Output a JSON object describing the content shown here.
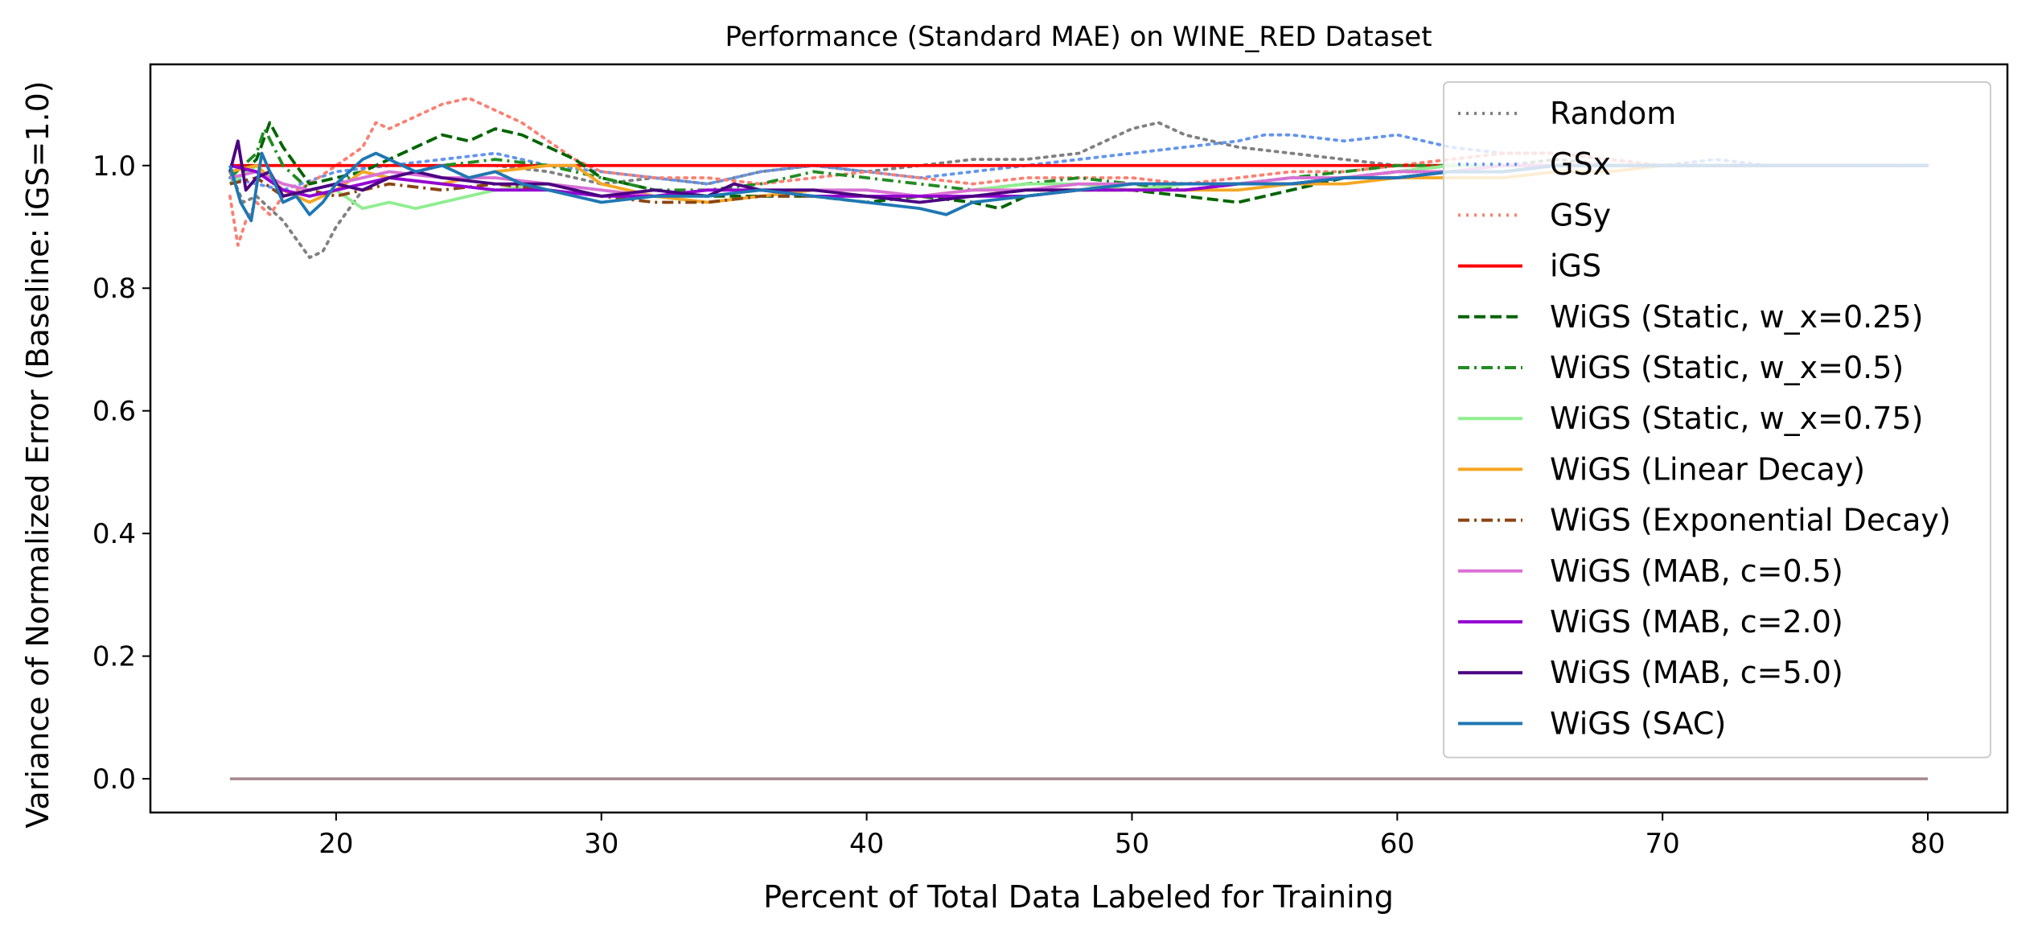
{
  "chart_data": {
    "type": "line",
    "title": "Performance (Standard MAE) on WINE_RED Dataset",
    "xlabel": "Percent of Total Data Labeled for Training",
    "ylabel": "Variance of Normalized Error (Baseline: iGS=1.0)",
    "xlim": [
      13,
      83
    ],
    "ylim": [
      -0.055,
      1.165
    ],
    "xticks": [
      20,
      30,
      40,
      50,
      60,
      70,
      80
    ],
    "yticks": [
      0.0,
      0.2,
      0.4,
      0.6,
      0.8,
      1.0
    ],
    "xtick_labels": [
      "20",
      "30",
      "40",
      "50",
      "60",
      "70",
      "80"
    ],
    "ytick_labels": [
      "0.0",
      "0.2",
      "0.4",
      "0.6",
      "0.8",
      "1.0"
    ],
    "grid": false,
    "legend_position": "upper right",
    "baseline_series": {
      "x": [
        16,
        80
      ],
      "y": [
        0.0,
        0.0
      ],
      "color": "#a7878e"
    },
    "series": [
      {
        "name": "Random",
        "color": "#808080",
        "dash": "dotted",
        "x": [
          16,
          16.5,
          17,
          17.5,
          18,
          18.5,
          19,
          19.5,
          20,
          21,
          22,
          24,
          26,
          28,
          30,
          32,
          34,
          36,
          38,
          40,
          42,
          44,
          46,
          48,
          50,
          51,
          52,
          54,
          56,
          58,
          60,
          62,
          64,
          66,
          68,
          70,
          72,
          74,
          76,
          78,
          80
        ],
        "y": [
          0.99,
          0.94,
          0.95,
          0.93,
          0.91,
          0.88,
          0.85,
          0.86,
          0.9,
          0.96,
          0.98,
          1.0,
          1.0,
          0.99,
          0.97,
          0.98,
          0.97,
          0.99,
          1.0,
          0.99,
          1.0,
          1.01,
          1.01,
          1.02,
          1.06,
          1.07,
          1.05,
          1.03,
          1.02,
          1.01,
          1.0,
          1.0,
          1.0,
          1.01,
          1.0,
          1.0,
          1.0,
          1.0,
          1.0,
          1.0,
          1.0
        ]
      },
      {
        "name": "GSx",
        "color": "#6495ed",
        "dash": "dotted",
        "x": [
          16,
          17,
          18,
          20,
          22,
          24,
          26,
          28,
          30,
          32,
          34,
          36,
          38,
          40,
          42,
          44,
          46,
          48,
          50,
          52,
          54,
          55,
          56,
          58,
          60,
          62,
          64,
          66,
          68,
          70,
          72,
          74,
          76,
          78,
          80
        ],
        "y": [
          0.98,
          0.97,
          0.96,
          0.99,
          1.0,
          1.01,
          1.02,
          1.0,
          0.99,
          0.98,
          0.97,
          0.99,
          1.0,
          0.99,
          0.98,
          0.99,
          1.0,
          1.01,
          1.02,
          1.03,
          1.04,
          1.05,
          1.05,
          1.04,
          1.05,
          1.03,
          1.02,
          1.02,
          1.01,
          1.0,
          1.01,
          1.0,
          1.0,
          1.0,
          1.0
        ]
      },
      {
        "name": "GSy",
        "color": "#fa8072",
        "dash": "dotted",
        "x": [
          16,
          16.3,
          16.6,
          17,
          17.5,
          18,
          19,
          20,
          21,
          21.5,
          22,
          23,
          24,
          25,
          26,
          27,
          28,
          29,
          30,
          32,
          34,
          36,
          38,
          40,
          42,
          44,
          46,
          48,
          50,
          52,
          54,
          56,
          58,
          60,
          62,
          64,
          66,
          68,
          70,
          72,
          74,
          76,
          78,
          80
        ],
        "y": [
          0.95,
          0.87,
          0.91,
          0.94,
          0.92,
          0.95,
          0.97,
          1.0,
          1.03,
          1.07,
          1.06,
          1.08,
          1.1,
          1.11,
          1.09,
          1.07,
          1.04,
          1.01,
          0.99,
          0.98,
          0.98,
          0.97,
          0.98,
          0.99,
          0.98,
          0.97,
          0.98,
          0.98,
          0.98,
          0.97,
          0.98,
          0.99,
          0.99,
          1.0,
          1.01,
          1.02,
          1.02,
          1.01,
          1.0,
          1.0,
          1.0,
          1.0,
          1.0,
          1.0
        ]
      },
      {
        "name": "iGS",
        "color": "#ff0000",
        "dash": "solid",
        "x": [
          16,
          80
        ],
        "y": [
          1.0,
          1.0
        ]
      },
      {
        "name": "WiGS (Static, w_x=0.25)",
        "color": "#006400",
        "dash": "dashed",
        "x": [
          16,
          17,
          17.5,
          18,
          19,
          20,
          21,
          22,
          23,
          24,
          25,
          26,
          27,
          28,
          29,
          30,
          32,
          34,
          36,
          38,
          40,
          42,
          44,
          45,
          46,
          48,
          50,
          52,
          54,
          56,
          58,
          60,
          62,
          64,
          66,
          68,
          70,
          72,
          74,
          76,
          78,
          80
        ],
        "y": [
          0.97,
          1.01,
          1.07,
          1.03,
          0.97,
          0.98,
          0.99,
          1.01,
          1.03,
          1.05,
          1.04,
          1.06,
          1.05,
          1.03,
          1.01,
          0.98,
          0.96,
          0.95,
          0.95,
          0.95,
          0.94,
          0.95,
          0.94,
          0.93,
          0.95,
          0.96,
          0.96,
          0.95,
          0.94,
          0.96,
          0.98,
          0.99,
          1.0,
          1.0,
          1.0,
          1.0,
          1.0,
          1.0,
          1.0,
          1.0,
          1.0,
          1.0
        ]
      },
      {
        "name": "WiGS (Static, w_x=0.5)",
        "color": "#228b22",
        "dash": "dashdot",
        "x": [
          16,
          17,
          17.3,
          18,
          19,
          20,
          21,
          22,
          23,
          24,
          26,
          28,
          30,
          32,
          34,
          36,
          38,
          40,
          42,
          44,
          46,
          48,
          50,
          52,
          54,
          56,
          58,
          60,
          62,
          64,
          66,
          68,
          70,
          72,
          74,
          76,
          78,
          80
        ],
        "y": [
          0.98,
          1.02,
          1.06,
          1.0,
          0.96,
          0.97,
          0.99,
          0.98,
          0.99,
          1.0,
          1.01,
          1.0,
          0.98,
          0.96,
          0.96,
          0.97,
          0.99,
          0.98,
          0.97,
          0.96,
          0.97,
          0.98,
          0.97,
          0.96,
          0.97,
          0.98,
          0.99,
          1.0,
          1.0,
          1.0,
          1.0,
          1.0,
          1.0,
          1.0,
          1.0,
          1.0,
          1.0,
          1.0
        ]
      },
      {
        "name": "WiGS (Static, w_x=0.75)",
        "color": "#90ee90",
        "dash": "solid",
        "x": [
          16,
          17,
          18,
          19,
          20,
          21,
          22,
          23,
          24,
          26,
          28,
          30,
          32,
          34,
          36,
          38,
          40,
          42,
          44,
          46,
          48,
          50,
          52,
          54,
          56,
          58,
          60,
          62,
          64,
          66,
          68,
          70,
          72,
          74,
          76,
          78,
          80
        ],
        "y": [
          0.97,
          1.0,
          0.96,
          0.95,
          0.96,
          0.93,
          0.94,
          0.93,
          0.94,
          0.96,
          0.97,
          0.96,
          0.95,
          0.94,
          0.95,
          0.96,
          0.96,
          0.95,
          0.96,
          0.97,
          0.97,
          0.96,
          0.97,
          0.97,
          0.98,
          0.98,
          0.99,
          1.0,
          1.0,
          1.0,
          1.0,
          1.0,
          1.0,
          1.0,
          1.0,
          1.0,
          1.0
        ]
      },
      {
        "name": "WiGS (Linear Decay)",
        "color": "#f5a623",
        "dash": "solid",
        "x": [
          16,
          17,
          18,
          19,
          20,
          21,
          22,
          24,
          26,
          28,
          29,
          30,
          32,
          34,
          36,
          38,
          40,
          42,
          44,
          46,
          48,
          50,
          52,
          54,
          56,
          58,
          60,
          62,
          64,
          66,
          68,
          70,
          72,
          74,
          76,
          78,
          80
        ],
        "y": [
          0.99,
          1.0,
          0.96,
          0.94,
          0.96,
          0.99,
          0.98,
          0.97,
          0.99,
          1.0,
          1.0,
          0.97,
          0.95,
          0.94,
          0.95,
          0.96,
          0.95,
          0.95,
          0.96,
          0.96,
          0.96,
          0.96,
          0.96,
          0.96,
          0.97,
          0.97,
          0.98,
          0.98,
          0.98,
          0.99,
          0.99,
          1.0,
          1.0,
          1.0,
          1.0,
          1.0,
          1.0
        ]
      },
      {
        "name": "WiGS (Exponential Decay)",
        "color": "#8b4513",
        "dash": "dashdot",
        "x": [
          16,
          17,
          18,
          19,
          20,
          21,
          22,
          24,
          26,
          28,
          30,
          32,
          34,
          36,
          38,
          40,
          42,
          44,
          46,
          48,
          50,
          52,
          54,
          56,
          58,
          60,
          62,
          64,
          66,
          68,
          70,
          72,
          74,
          76,
          78,
          80
        ],
        "y": [
          0.97,
          0.98,
          0.95,
          0.96,
          0.95,
          0.96,
          0.97,
          0.96,
          0.97,
          0.96,
          0.95,
          0.94,
          0.94,
          0.95,
          0.95,
          0.95,
          0.95,
          0.95,
          0.96,
          0.96,
          0.96,
          0.96,
          0.97,
          0.97,
          0.98,
          0.99,
          0.99,
          1.0,
          1.0,
          1.0,
          1.0,
          1.0,
          1.0,
          1.0,
          1.0,
          1.0
        ]
      },
      {
        "name": "WiGS (MAB, c=0.5)",
        "color": "#da70d6",
        "dash": "solid",
        "x": [
          16,
          17,
          18,
          19,
          20,
          21,
          22,
          24,
          26,
          28,
          30,
          32,
          34,
          36,
          38,
          40,
          42,
          44,
          46,
          48,
          50,
          52,
          54,
          56,
          58,
          60,
          62,
          64,
          66,
          68,
          70,
          72,
          74,
          76,
          78,
          80
        ],
        "y": [
          0.98,
          0.99,
          0.97,
          0.96,
          0.97,
          0.98,
          0.99,
          0.98,
          0.98,
          0.97,
          0.96,
          0.95,
          0.96,
          0.96,
          0.96,
          0.96,
          0.95,
          0.96,
          0.96,
          0.97,
          0.97,
          0.97,
          0.97,
          0.98,
          0.98,
          0.99,
          0.99,
          1.0,
          1.0,
          1.0,
          1.0,
          1.0,
          1.0,
          1.0,
          1.0,
          1.0
        ]
      },
      {
        "name": "WiGS (MAB, c=2.0)",
        "color": "#9400d3",
        "dash": "solid",
        "x": [
          16,
          17,
          18,
          19,
          20,
          21,
          22,
          24,
          26,
          28,
          30,
          32,
          34,
          36,
          38,
          40,
          42,
          44,
          46,
          48,
          50,
          52,
          54,
          56,
          58,
          60,
          62,
          64,
          66,
          68,
          70,
          72,
          74,
          76,
          78,
          80
        ],
        "y": [
          1.0,
          0.99,
          0.96,
          0.95,
          0.96,
          0.97,
          0.98,
          0.97,
          0.96,
          0.96,
          0.95,
          0.95,
          0.96,
          0.96,
          0.95,
          0.95,
          0.95,
          0.95,
          0.95,
          0.96,
          0.96,
          0.96,
          0.97,
          0.97,
          0.98,
          0.98,
          0.99,
          0.99,
          1.0,
          1.0,
          1.0,
          1.0,
          1.0,
          1.0,
          1.0,
          1.0
        ]
      },
      {
        "name": "WiGS (MAB, c=5.0)",
        "color": "#4b0082",
        "dash": "solid",
        "x": [
          16,
          16.3,
          16.6,
          17,
          17.5,
          18,
          19,
          20,
          21,
          22,
          23,
          24,
          26,
          28,
          30,
          32,
          34,
          35,
          36,
          38,
          40,
          42,
          44,
          46,
          48,
          50,
          52,
          54,
          56,
          58,
          60,
          62,
          64,
          66,
          68,
          70,
          72,
          74,
          76,
          78,
          80
        ],
        "y": [
          0.99,
          1.04,
          0.96,
          0.98,
          0.99,
          0.95,
          0.96,
          0.97,
          0.96,
          0.98,
          0.99,
          0.98,
          0.97,
          0.97,
          0.95,
          0.96,
          0.95,
          0.97,
          0.96,
          0.96,
          0.95,
          0.94,
          0.95,
          0.96,
          0.96,
          0.97,
          0.97,
          0.97,
          0.97,
          0.98,
          0.98,
          0.99,
          0.99,
          1.0,
          1.0,
          1.0,
          1.0,
          1.0,
          1.0,
          1.0,
          1.0
        ]
      },
      {
        "name": "WiGS (SAC)",
        "color": "#1f77b4",
        "dash": "solid",
        "x": [
          16,
          16.4,
          16.8,
          17.2,
          17.6,
          18,
          18.5,
          19,
          19.5,
          20,
          20.5,
          21,
          21.5,
          22,
          23,
          24,
          25,
          26,
          27,
          28,
          30,
          32,
          34,
          36,
          38,
          40,
          42,
          43,
          44,
          46,
          48,
          50,
          52,
          54,
          56,
          58,
          60,
          62,
          64,
          66,
          68,
          70,
          72,
          74,
          76,
          78,
          80
        ],
        "y": [
          1.0,
          0.94,
          0.91,
          1.02,
          0.98,
          0.94,
          0.95,
          0.92,
          0.94,
          0.97,
          0.99,
          1.01,
          1.02,
          1.01,
          0.99,
          1.0,
          0.98,
          0.99,
          0.97,
          0.96,
          0.94,
          0.95,
          0.95,
          0.96,
          0.95,
          0.94,
          0.93,
          0.92,
          0.94,
          0.95,
          0.96,
          0.97,
          0.97,
          0.97,
          0.97,
          0.98,
          0.98,
          0.99,
          0.99,
          1.0,
          1.0,
          1.0,
          1.0,
          1.0,
          1.0,
          1.0,
          1.0
        ]
      }
    ]
  }
}
